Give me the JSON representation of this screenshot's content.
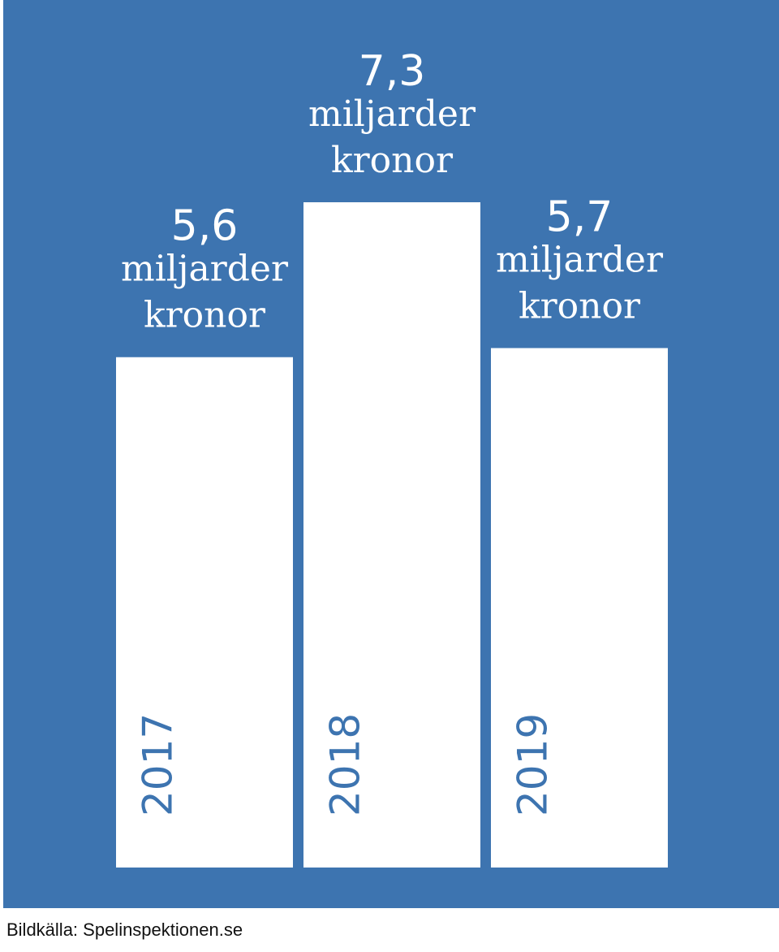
{
  "chart_data": {
    "type": "bar",
    "categories": [
      "2017",
      "2018",
      "2019"
    ],
    "values": [
      5.6,
      7.3,
      5.7
    ],
    "value_labels": [
      "5,6",
      "7,3",
      "5,7"
    ],
    "unit_lines": [
      "miljarder",
      "kronor"
    ],
    "title": "",
    "xlabel": "",
    "ylabel": "",
    "grid": false,
    "legend": "none",
    "colors": {
      "background": "#3d74b0",
      "bar": "#ffffff",
      "value_text": "#ffffff",
      "year_text": "#3d74b0"
    }
  },
  "source": "Bildkälla: Spelinspektionen.se"
}
